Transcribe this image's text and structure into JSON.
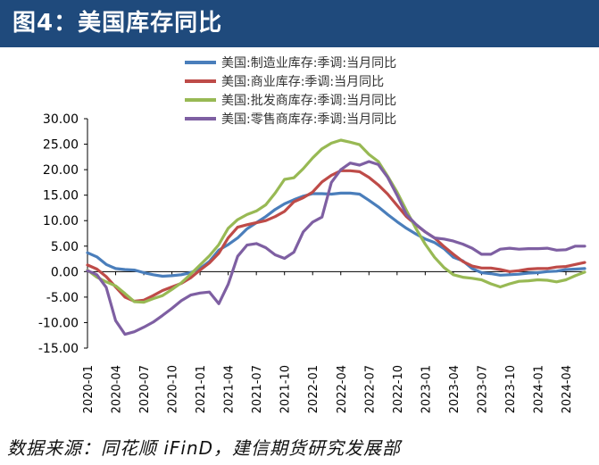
{
  "header": {
    "title": "图4：美国库存同比"
  },
  "footer": {
    "source": "数据来源：同花顺 iFinD，建信期货研究发展部"
  },
  "colors": {
    "header_bg": "#1f4a7c"
  },
  "chart_data": {
    "type": "line",
    "title": "图4：美国库存同比",
    "xlabel": "",
    "ylabel": "",
    "ylim": [
      -15,
      30
    ],
    "yticks": [
      "30.00",
      "25.00",
      "20.00",
      "15.00",
      "10.00",
      "5.00",
      "0.00",
      "-5.00",
      "-10.00",
      "-15.00"
    ],
    "x_start": "2020-01",
    "x_tick_labels": [
      "2020-01",
      "2020-04",
      "2020-07",
      "2020-10",
      "2021-01",
      "2021-04",
      "2021-07",
      "2021-10",
      "2022-01",
      "2022-04",
      "2022-07",
      "2022-10",
      "2023-01",
      "2023-04",
      "2023-07",
      "2023-10",
      "2024-01",
      "2024-04"
    ],
    "legend_position": "top",
    "series": [
      {
        "name": "美国:制造业库存:季调:当月同比",
        "color": "#4a7ebb",
        "values": [
          3.7,
          2.9,
          1.4,
          0.6,
          0.4,
          0.3,
          -0.2,
          -0.6,
          -0.9,
          -0.8,
          -0.6,
          -0.2,
          0.6,
          2.0,
          4.2,
          5.3,
          6.6,
          8.4,
          9.6,
          10.8,
          12.2,
          13.3,
          14.1,
          14.8,
          15.3,
          15.3,
          15.2,
          15.4,
          15.4,
          15.2,
          14.0,
          12.7,
          11.2,
          9.8,
          8.5,
          7.4,
          6.4,
          5.7,
          4.5,
          2.8,
          2.1,
          0.6,
          -0.2,
          -0.4,
          -0.7,
          -0.6,
          -0.5,
          -0.3,
          -0.2,
          0.0,
          0.1,
          0.4,
          0.5,
          0.6
        ]
      },
      {
        "name": "美国:商业库存:季调:当月同比",
        "color": "#be4b48",
        "values": [
          1.3,
          0.5,
          -1.0,
          -3.0,
          -5.0,
          -5.8,
          -5.6,
          -4.7,
          -3.7,
          -3.0,
          -2.3,
          -1.2,
          0.3,
          1.7,
          3.6,
          6.6,
          8.7,
          9.2,
          9.6,
          10.0,
          10.8,
          11.8,
          13.7,
          14.5,
          15.6,
          17.6,
          18.9,
          19.8,
          19.8,
          19.6,
          18.5,
          17.0,
          15.2,
          13.0,
          10.8,
          9.2,
          7.8,
          6.6,
          4.9,
          3.4,
          2.0,
          1.1,
          0.7,
          0.7,
          0.4,
          0.0,
          0.2,
          0.5,
          0.6,
          0.6,
          0.9,
          1.0,
          1.4,
          1.8
        ]
      },
      {
        "name": "美国:批发商库存:季调:当月同比",
        "color": "#98b954",
        "values": [
          0.3,
          -1.1,
          -2.0,
          -2.8,
          -4.3,
          -5.9,
          -6.0,
          -5.3,
          -4.7,
          -3.5,
          -2.2,
          -0.5,
          1.3,
          3.1,
          5.3,
          8.5,
          10.2,
          11.2,
          11.9,
          13.1,
          15.4,
          18.1,
          18.4,
          20.2,
          22.3,
          24.1,
          25.2,
          25.8,
          25.4,
          24.9,
          23.0,
          21.6,
          18.7,
          15.6,
          12.0,
          8.5,
          5.4,
          2.8,
          0.8,
          -0.6,
          -1.1,
          -1.3,
          -1.6,
          -2.4,
          -3.0,
          -2.4,
          -1.9,
          -1.8,
          -1.6,
          -1.7,
          -2.0,
          -1.6,
          -0.8,
          -0.1
        ]
      },
      {
        "name": "美国:零售商库存:季调:当月同比",
        "color": "#7e5fa2",
        "values": [
          0.2,
          -0.6,
          -3.1,
          -9.6,
          -12.3,
          -11.8,
          -10.9,
          -9.9,
          -8.6,
          -7.2,
          -5.7,
          -4.6,
          -4.2,
          -4.0,
          -6.3,
          -2.5,
          3.0,
          5.2,
          5.5,
          4.7,
          3.3,
          2.6,
          3.8,
          7.8,
          9.7,
          10.7,
          17.5,
          20.0,
          21.3,
          20.9,
          21.6,
          21.0,
          18.5,
          15.0,
          11.2,
          9.3,
          7.8,
          6.6,
          6.4,
          6.0,
          5.4,
          4.6,
          3.4,
          3.4,
          4.4,
          4.6,
          4.4,
          4.5,
          4.5,
          4.6,
          4.2,
          4.3,
          5.0,
          5.0
        ]
      }
    ]
  }
}
